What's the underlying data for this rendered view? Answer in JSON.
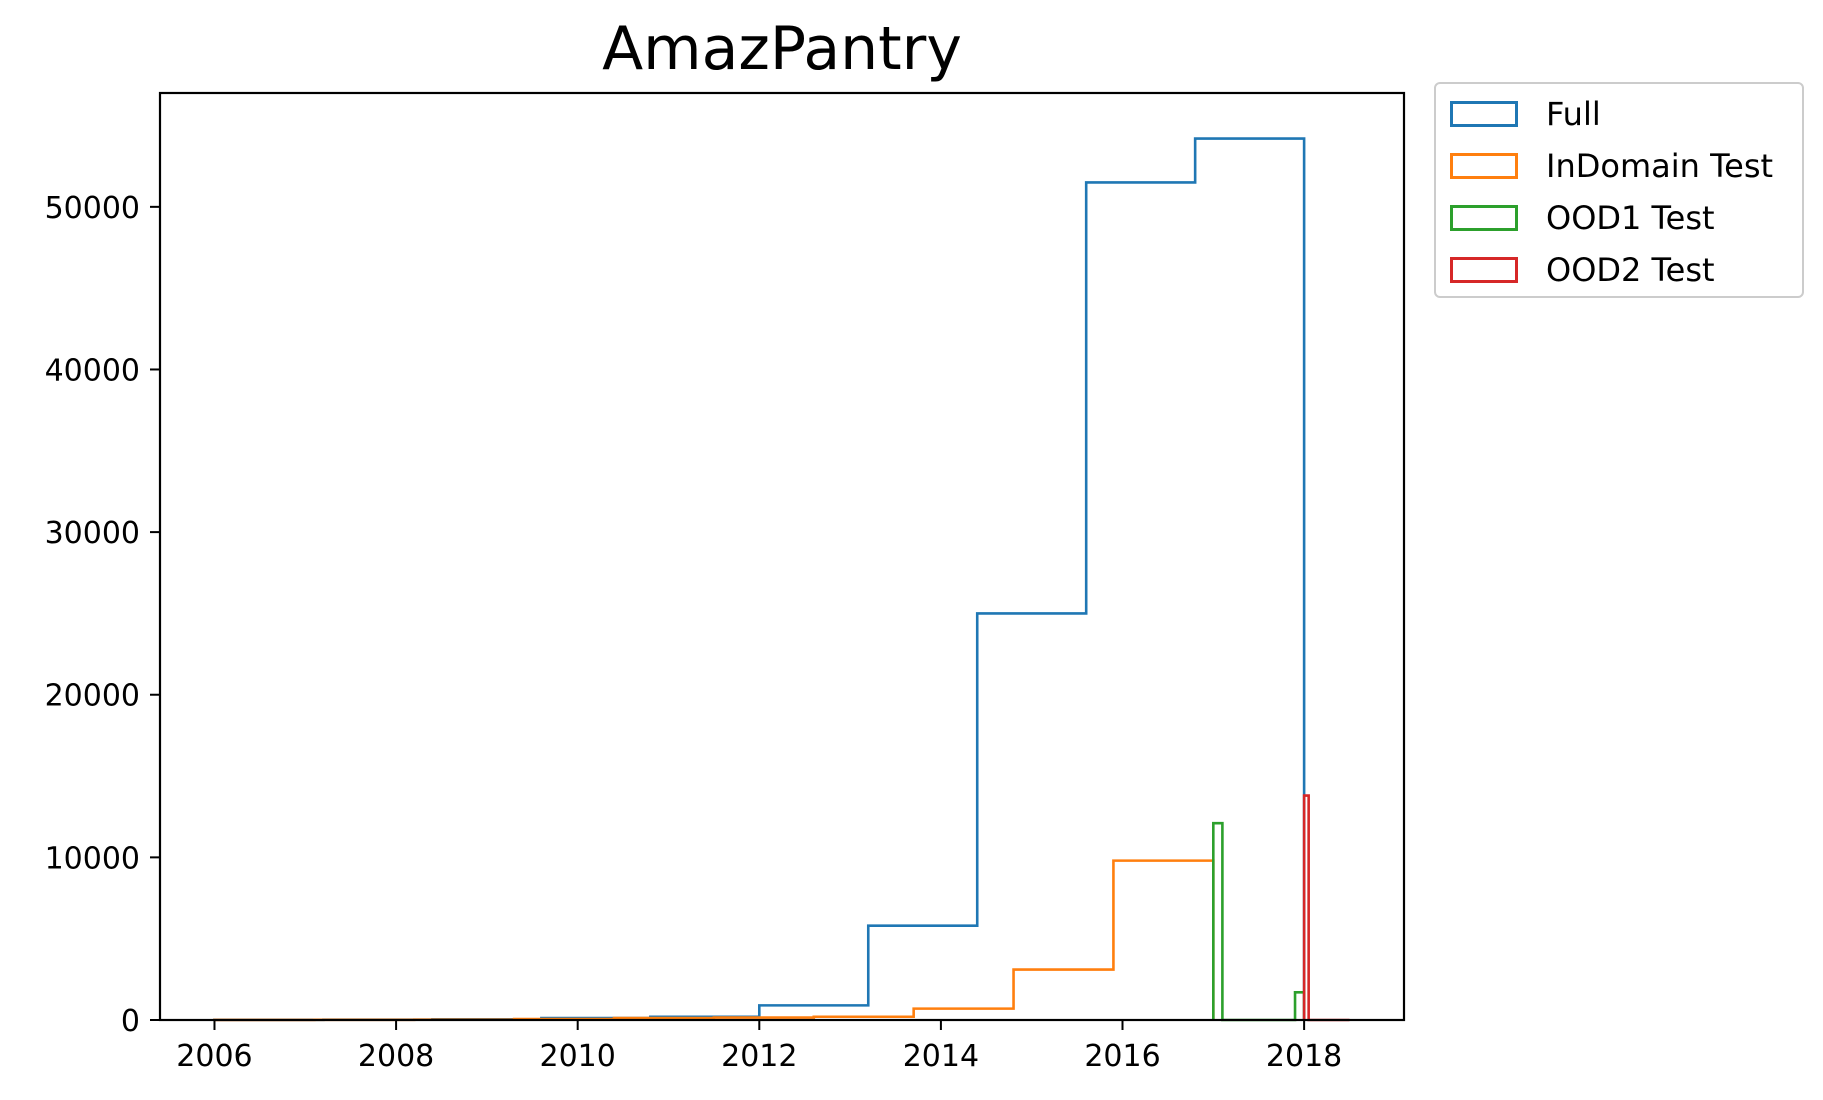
{
  "chart_data": {
    "type": "histogram",
    "title": "AmazPantry",
    "xlabel": "",
    "ylabel": "",
    "xlim": [
      2005.4,
      2019.1
    ],
    "ylim": [
      0,
      57000
    ],
    "x_ticks": [
      "2006",
      "2008",
      "2010",
      "2012",
      "2014",
      "2016",
      "2018"
    ],
    "y_ticks": [
      "0",
      "10000",
      "20000",
      "30000",
      "40000",
      "50000"
    ],
    "grid": false,
    "legend_position": "outside-top-right",
    "series": [
      {
        "name": "Full",
        "color": "#1f77b4",
        "bin_edges": [
          2006.0,
          2007.2,
          2008.4,
          2009.6,
          2010.8,
          2012.0,
          2013.2,
          2014.4,
          2015.6,
          2016.8,
          2018.0
        ],
        "values": [
          10,
          20,
          40,
          120,
          200,
          900,
          5800,
          25000,
          51500,
          54200
        ]
      },
      {
        "name": "InDomain Test",
        "color": "#ff7f0e",
        "bin_edges": [
          2006.0,
          2007.1,
          2008.2,
          2009.3,
          2010.4,
          2011.5,
          2012.6,
          2013.7,
          2014.8,
          2015.9,
          2017.0
        ],
        "values": [
          5,
          10,
          20,
          60,
          120,
          150,
          200,
          700,
          3100,
          9800
        ]
      },
      {
        "name": "OOD1 Test",
        "color": "#2ca02c",
        "bin_edges": [
          2017.0,
          2017.1,
          2017.2,
          2017.3,
          2017.4,
          2017.5,
          2017.6,
          2017.7,
          2017.8,
          2017.9,
          2018.0
        ],
        "values": [
          12100,
          0,
          0,
          0,
          0,
          0,
          0,
          0,
          0,
          1700
        ]
      },
      {
        "name": "OOD2 Test",
        "color": "#d62728",
        "bin_edges": [
          2018.0,
          2018.05,
          2018.1,
          2018.15,
          2018.2,
          2018.25,
          2018.3,
          2018.35,
          2018.4,
          2018.45,
          2018.5
        ],
        "values": [
          13800,
          0,
          0,
          0,
          0,
          0,
          0,
          0,
          0,
          0
        ]
      }
    ]
  }
}
